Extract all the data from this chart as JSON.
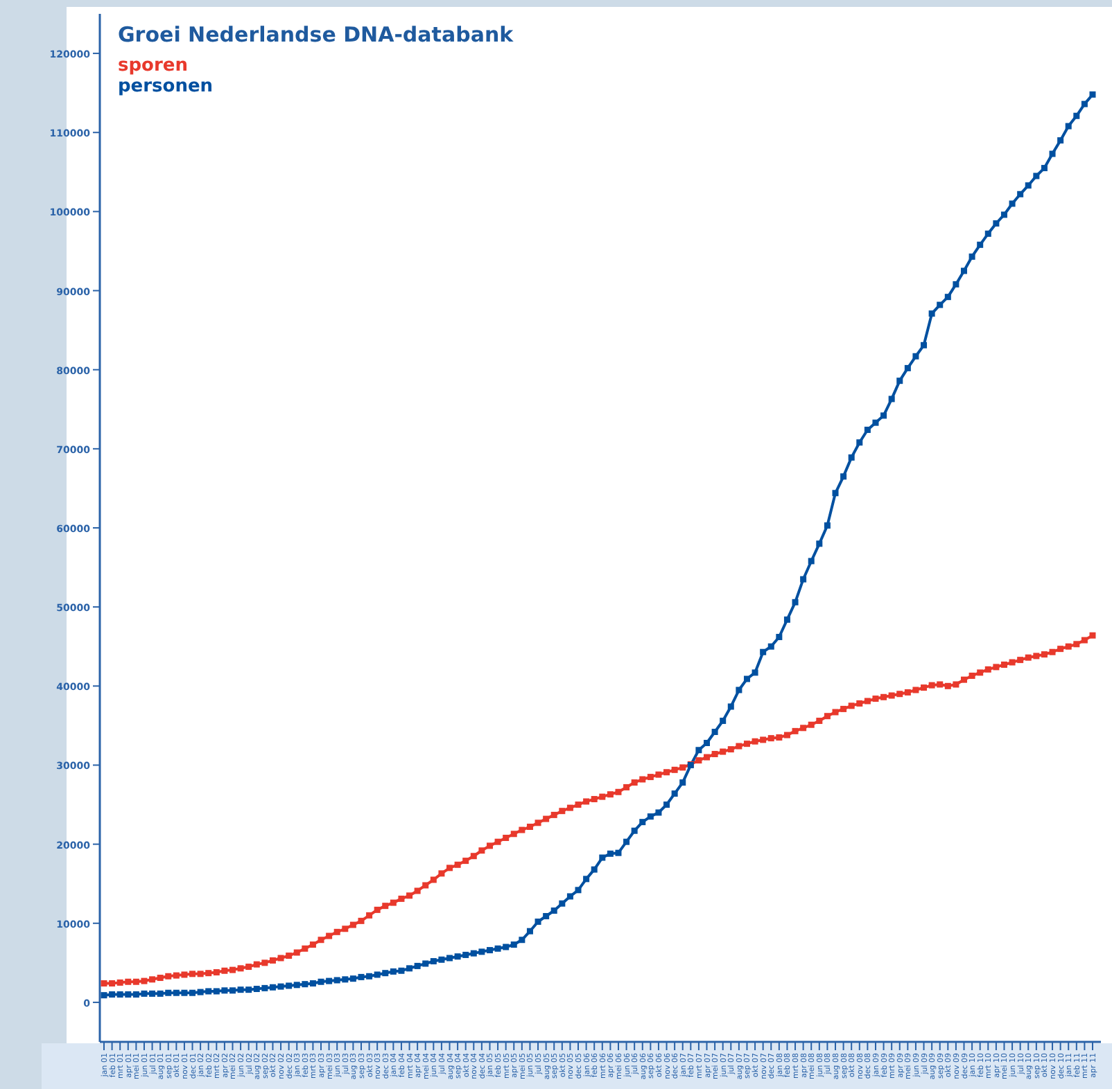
{
  "chart_data": {
    "type": "line",
    "title": "Groei Nederlandse DNA-databank",
    "categories": [
      "jan 01",
      "feb 01",
      "mrt 01",
      "apr 01",
      "mei 01",
      "jun 01",
      "jul 01",
      "aug 01",
      "sep 01",
      "okt 01",
      "nov 01",
      "dec 01",
      "jan 02",
      "feb 02",
      "mrt 02",
      "apr 02",
      "mei 02",
      "jun 02",
      "jul 02",
      "aug 02",
      "sep 02",
      "okt 02",
      "nov 02",
      "dec 02",
      "jan 03",
      "feb 03",
      "mrt 03",
      "apr 03",
      "mei 03",
      "jun 03",
      "jul 03",
      "aug 03",
      "sep 03",
      "okt 03",
      "nov 03",
      "dec 03",
      "jan 04",
      "feb 04",
      "mrt 04",
      "apr 04",
      "mei 04",
      "jun 04",
      "jul 04",
      "aug 04",
      "sep 04",
      "okt 04",
      "nov 04",
      "dec 04",
      "jan 05",
      "feb 05",
      "mrt 05",
      "apr 05",
      "mei 05",
      "jun 05",
      "jul 05",
      "aug 05",
      "sep 05",
      "okt 05",
      "nov 05",
      "dec 05",
      "jan 06",
      "feb 06",
      "mrt 06",
      "apr 06",
      "mei 06",
      "jun 06",
      "jul 06",
      "aug 06",
      "sep 06",
      "okt 06",
      "nov 06",
      "dec 06",
      "jan 07",
      "feb 07",
      "mrt 07",
      "apr 07",
      "mei 07",
      "jun 07",
      "jul 07",
      "aug 07",
      "sep 07",
      "okt 07",
      "nov 07",
      "dec 07",
      "jan 08",
      "feb 08",
      "mrt 08",
      "apr 08",
      "mei 08",
      "jun 08",
      "jul 08",
      "aug 08",
      "sep 08",
      "okt 08",
      "nov 08",
      "dec 08",
      "jan 09",
      "feb 09",
      "mrt 09",
      "apr 09",
      "mei 09",
      "jun 09",
      "jul 09",
      "aug 09",
      "sep 09",
      "okt 09",
      "nov 09",
      "dec 09",
      "jan 10",
      "feb 10",
      "mrt 10",
      "apr 10",
      "mei 10",
      "jun 10",
      "jul 10",
      "aug 10",
      "sep 10",
      "okt 10",
      "nov 10",
      "dec 10",
      "jan 11",
      "feb 11",
      "mrt 11",
      "apr 11"
    ],
    "series": [
      {
        "name": "sporen",
        "color": "#e8392c",
        "values": [
          2400,
          2400,
          2500,
          2600,
          2600,
          2700,
          2900,
          3100,
          3300,
          3400,
          3500,
          3600,
          3600,
          3700,
          3800,
          4000,
          4100,
          4300,
          4500,
          4800,
          5000,
          5300,
          5600,
          5900,
          6300,
          6800,
          7300,
          7900,
          8400,
          8900,
          9300,
          9800,
          10300,
          11000,
          11700,
          12200,
          12600,
          13100,
          13500,
          14100,
          14800,
          15500,
          16300,
          17000,
          17400,
          17900,
          18500,
          19200,
          19800,
          20300,
          20800,
          21300,
          21800,
          22200,
          22700,
          23200,
          23700,
          24200,
          24600,
          25000,
          25400,
          25700,
          26000,
          26300,
          26600,
          27200,
          27800,
          28200,
          28500,
          28800,
          29100,
          29400,
          29700,
          30100,
          30600,
          31000,
          31400,
          31700,
          32000,
          32400,
          32700,
          33000,
          33200,
          33400,
          33500,
          33800,
          34300,
          34700,
          35100,
          35600,
          36200,
          36700,
          37100,
          37500,
          37800,
          38100,
          38400,
          38600,
          38800,
          39000,
          39200,
          39500,
          39800,
          40100,
          40200,
          40000,
          40200,
          40800,
          41300,
          41700,
          42100,
          42400,
          42700,
          43000,
          43300,
          43600,
          43800,
          44000,
          44300,
          44700,
          45000,
          45300,
          45800,
          46400
        ]
      },
      {
        "name": "personen",
        "color": "#0050a0",
        "values": [
          900,
          1000,
          1000,
          1000,
          1000,
          1100,
          1100,
          1100,
          1200,
          1200,
          1200,
          1200,
          1300,
          1400,
          1400,
          1500,
          1500,
          1600,
          1600,
          1700,
          1800,
          1900,
          2000,
          2100,
          2200,
          2300,
          2400,
          2600,
          2700,
          2800,
          2900,
          3000,
          3200,
          3300,
          3500,
          3700,
          3900,
          4000,
          4300,
          4600,
          4900,
          5200,
          5400,
          5600,
          5800,
          6000,
          6200,
          6400,
          6600,
          6800,
          7000,
          7300,
          7900,
          9000,
          10200,
          10900,
          11600,
          12500,
          13400,
          14200,
          15600,
          16800,
          18300,
          18800,
          18900,
          20300,
          21700,
          22800,
          23500,
          24000,
          25000,
          26400,
          27800,
          30000,
          31900,
          32800,
          34200,
          35600,
          37400,
          39500,
          40900,
          41700,
          44300,
          45000,
          46200,
          48400,
          50600,
          53500,
          55800,
          58000,
          60300,
          64400,
          66500,
          68900,
          70800,
          72400,
          73300,
          74200,
          76300,
          78600,
          80200,
          81700,
          83100,
          87100,
          88200,
          89200,
          90800,
          92500,
          94300,
          95800,
          97200,
          98500,
          99600,
          101000,
          102200,
          103300,
          104500,
          105500,
          107300,
          109000,
          110800,
          112100,
          113600,
          114800
        ]
      }
    ],
    "ylim": [
      -5000,
      125000
    ],
    "yticks": [
      0,
      10000,
      20000,
      30000,
      40000,
      50000,
      60000,
      70000,
      80000,
      90000,
      100000,
      110000,
      120000
    ],
    "grid": false,
    "legend": "top left",
    "marker": "square",
    "line_style": "solid"
  }
}
